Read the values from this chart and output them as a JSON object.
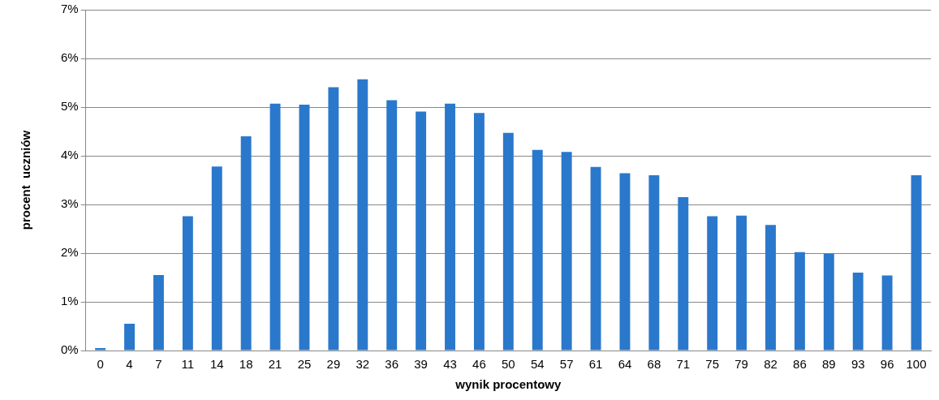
{
  "chart_data": {
    "type": "bar",
    "xlabel": "wynik procentowy",
    "ylabel": "procent  uczniów",
    "categories": [
      "0",
      "4",
      "7",
      "11",
      "14",
      "18",
      "21",
      "25",
      "29",
      "32",
      "36",
      "39",
      "43",
      "46",
      "50",
      "54",
      "57",
      "61",
      "64",
      "68",
      "71",
      "75",
      "79",
      "82",
      "86",
      "89",
      "93",
      "96",
      "100"
    ],
    "values": [
      0.05,
      0.55,
      1.55,
      2.76,
      3.78,
      4.4,
      5.07,
      5.05,
      5.41,
      5.57,
      5.14,
      4.91,
      5.07,
      4.88,
      4.47,
      4.12,
      4.08,
      3.77,
      3.64,
      3.6,
      3.15,
      2.76,
      2.77,
      2.58,
      2.02,
      1.99,
      1.6,
      1.54,
      3.6
    ],
    "color": "#2a78cc",
    "ylim": [
      0,
      7
    ],
    "yticks": [
      {
        "value": 0,
        "label": "0%"
      },
      {
        "value": 1,
        "label": "1%"
      },
      {
        "value": 2,
        "label": "2%"
      },
      {
        "value": 3,
        "label": "3%"
      },
      {
        "value": 4,
        "label": "4%"
      },
      {
        "value": 5,
        "label": "5%"
      },
      {
        "value": 6,
        "label": "6%"
      },
      {
        "value": 7,
        "label": "7%"
      }
    ],
    "grid": "y",
    "legend": false
  }
}
